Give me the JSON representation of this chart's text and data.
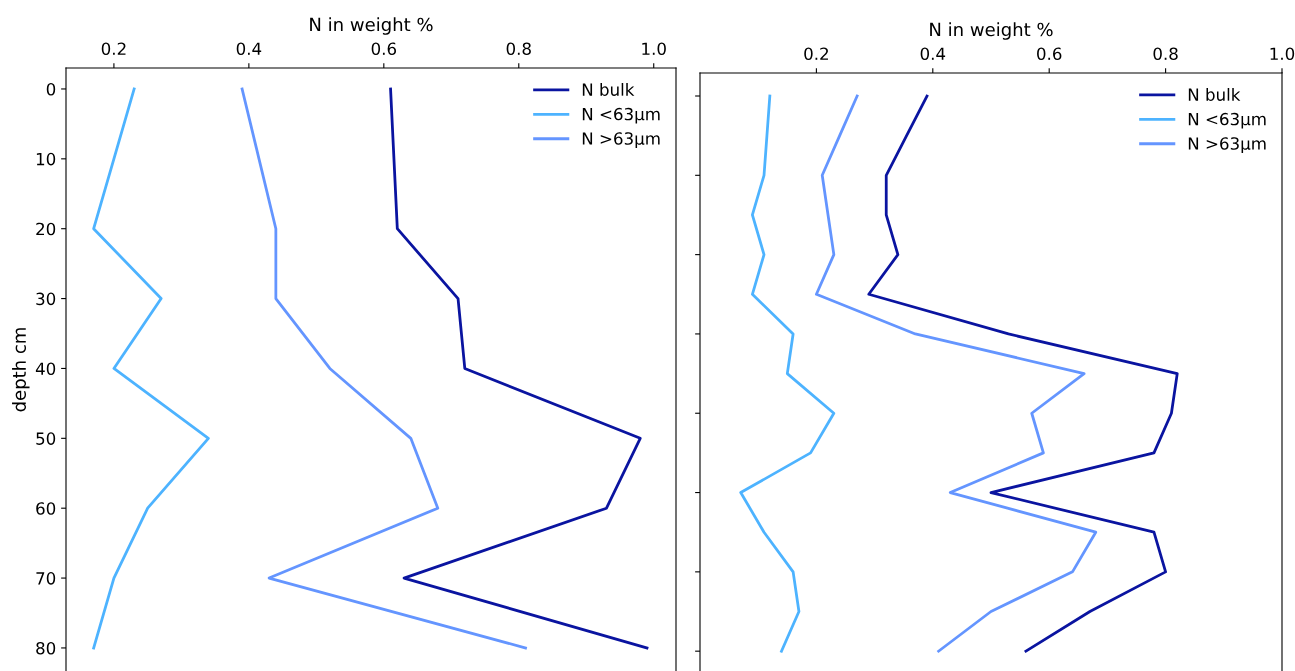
{
  "chart_data": [
    {
      "type": "line",
      "orientation": "horizontal",
      "xlabel": "N in weight %",
      "ylabel": "depth cm",
      "xlim": [
        0.129,
        1.033
      ],
      "xticks": [
        0.2,
        0.4,
        0.6,
        0.8,
        {
          "value": 1.0,
          "label": "1.0"
        }
      ],
      "ylim": [
        83.3,
        -3
      ],
      "yticks": [
        0,
        10,
        20,
        30,
        40,
        50,
        60,
        70,
        80
      ],
      "legend": "top right",
      "grid": false,
      "series": [
        {
          "name": "N bulk",
          "color": "#0a14a0",
          "x": [
            0,
            10,
            20,
            30,
            40,
            50,
            60,
            70,
            80
          ],
          "values": [
            0.61,
            0.615,
            0.62,
            0.71,
            0.72,
            0.98,
            0.93,
            0.63,
            0.99
          ]
        },
        {
          "name": "N <63µm",
          "color": "#4db3ff",
          "x": [
            0,
            10,
            20,
            30,
            40,
            50,
            60,
            70,
            80
          ],
          "values": [
            0.23,
            0.2,
            0.17,
            0.27,
            0.2,
            0.34,
            0.25,
            0.2,
            0.17
          ]
        },
        {
          "name": "N >63µm",
          "color": "#6495ff",
          "x": [
            0,
            10,
            20,
            30,
            40,
            50,
            60,
            70,
            80
          ],
          "values": [
            0.39,
            0.415,
            0.44,
            0.44,
            0.52,
            0.64,
            0.68,
            0.43,
            0.81
          ]
        }
      ]
    },
    {
      "type": "line",
      "orientation": "horizontal",
      "xlabel": "N in weight %",
      "xlim": [
        0,
        1.0
      ],
      "xticks": [
        0.2,
        0.4,
        0.6,
        0.8,
        {
          "value": 1.0,
          "label": "1.0"
        }
      ],
      "categories": [
        null,
        null,
        null,
        null,
        null,
        null,
        null,
        null,
        null,
        null,
        null,
        null,
        null,
        null,
        null
      ],
      "tick_labels": "x",
      "legend": "top right",
      "grid": false,
      "series": [
        {
          "name": "N bulk",
          "color": "#0a14a0",
          "values": [
            0.39,
            0.355,
            0.32,
            0.32,
            0.34,
            0.29,
            0.53,
            0.82,
            0.81,
            0.78,
            0.5,
            0.78,
            0.8,
            0.67,
            0.56
          ]
        },
        {
          "name": "N <63µm",
          "color": "#4db3ff",
          "values": [
            0.12,
            0.115,
            0.11,
            0.09,
            0.11,
            0.09,
            0.16,
            0.15,
            0.23,
            0.19,
            0.07,
            0.11,
            0.16,
            0.17,
            0.14
          ]
        },
        {
          "name": "N >63µm",
          "color": "#6495ff",
          "values": [
            0.27,
            0.24,
            0.21,
            0.22,
            0.23,
            0.2,
            0.37,
            0.66,
            0.57,
            0.59,
            0.43,
            0.68,
            0.64,
            0.5,
            0.41
          ]
        }
      ]
    }
  ]
}
